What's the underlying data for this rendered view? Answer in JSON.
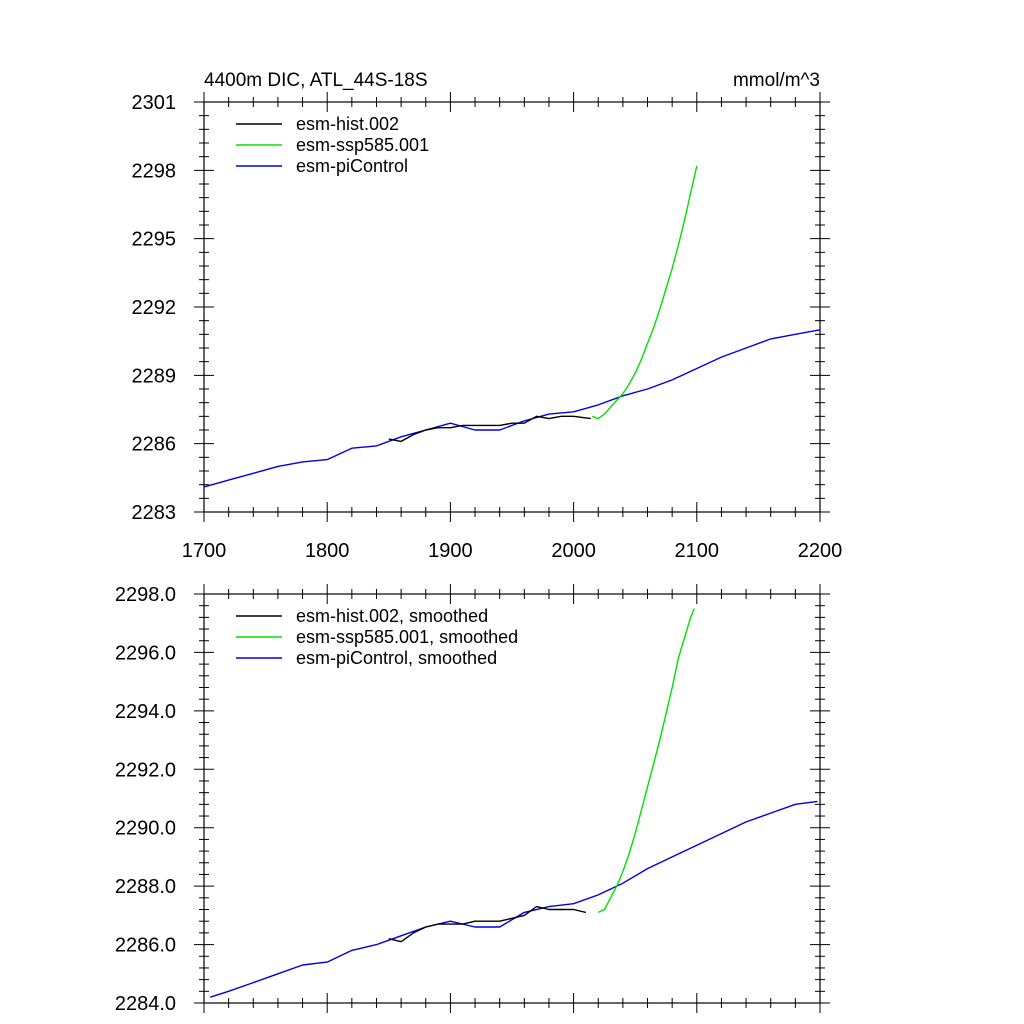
{
  "title_left": "4400m DIC, ATL_44S-18S",
  "title_right": "mmol/m^3",
  "colors": {
    "hist": "#000000",
    "ssp": "#00e000",
    "picontrol": "#0000e0"
  },
  "chart_data": [
    {
      "type": "line",
      "title": "4400m DIC, ATL_44S-18S",
      "units": "mmol/m^3",
      "xlim": [
        1700,
        2200
      ],
      "ylim": [
        2283,
        2301
      ],
      "x_ticks": [
        1700,
        1800,
        1900,
        2000,
        2100,
        2200
      ],
      "x_tick_labels": [
        "1700",
        "1800",
        "1900",
        "2000",
        "2100",
        "2200"
      ],
      "y_ticks": [
        2283,
        2286,
        2289,
        2292,
        2295,
        2298,
        2301
      ],
      "y_tick_labels": [
        "2283",
        "2286",
        "2289",
        "2292",
        "2295",
        "2298",
        "2301"
      ],
      "legend": [
        "esm-hist.002",
        "esm-ssp585.001",
        "esm-piControl"
      ],
      "series": [
        {
          "name": "esm-hist.002",
          "color": "#000000",
          "x": [
            1850,
            1860,
            1870,
            1880,
            1890,
            1900,
            1910,
            1920,
            1930,
            1940,
            1950,
            1960,
            1970,
            1980,
            1990,
            2000,
            2014
          ],
          "y": [
            2286.2,
            2286.1,
            2286.4,
            2286.6,
            2286.7,
            2286.7,
            2286.8,
            2286.8,
            2286.8,
            2286.8,
            2286.9,
            2286.9,
            2287.2,
            2287.1,
            2287.2,
            2287.2,
            2287.1
          ]
        },
        {
          "name": "esm-ssp585.001",
          "color": "#00e000",
          "x": [
            2015,
            2020,
            2025,
            2030,
            2035,
            2040,
            2045,
            2050,
            2055,
            2060,
            2065,
            2070,
            2075,
            2080,
            2085,
            2090,
            2095,
            2100
          ],
          "y": [
            2287.2,
            2287.1,
            2287.3,
            2287.6,
            2287.9,
            2288.2,
            2288.6,
            2289.1,
            2289.7,
            2290.4,
            2291.1,
            2291.9,
            2292.8,
            2293.7,
            2294.7,
            2295.8,
            2297.0,
            2298.2
          ]
        },
        {
          "name": "esm-piControl",
          "color": "#0000e0",
          "x": [
            1700,
            1720,
            1740,
            1760,
            1780,
            1800,
            1820,
            1840,
            1860,
            1880,
            1900,
            1920,
            1940,
            1960,
            1980,
            2000,
            2020,
            2040,
            2060,
            2080,
            2100,
            2120,
            2140,
            2160,
            2180,
            2200
          ],
          "y": [
            2284.1,
            2284.4,
            2284.7,
            2285.0,
            2285.2,
            2285.3,
            2285.8,
            2285.9,
            2286.3,
            2286.6,
            2286.9,
            2286.6,
            2286.6,
            2287.0,
            2287.3,
            2287.4,
            2287.7,
            2288.1,
            2288.4,
            2288.8,
            2289.3,
            2289.8,
            2290.2,
            2290.6,
            2290.8,
            2291.0
          ]
        }
      ]
    },
    {
      "type": "line",
      "xlim": [
        1700,
        2200
      ],
      "ylim": [
        2284.0,
        2298.0
      ],
      "x_ticks": [
        1700,
        1800,
        1900,
        2000,
        2100,
        2200
      ],
      "y_ticks": [
        2284.0,
        2286.0,
        2288.0,
        2290.0,
        2292.0,
        2294.0,
        2296.0,
        2298.0
      ],
      "y_tick_labels": [
        "2284.0",
        "2286.0",
        "2288.0",
        "2290.0",
        "2292.0",
        "2294.0",
        "2296.0",
        "2298.0"
      ],
      "legend": [
        "esm-hist.002, smoothed",
        "esm-ssp585.001, smoothed",
        "esm-piControl, smoothed"
      ],
      "series": [
        {
          "name": "esm-hist.002, smoothed",
          "color": "#000000",
          "x": [
            1850,
            1860,
            1870,
            1880,
            1890,
            1900,
            1910,
            1920,
            1930,
            1940,
            1950,
            1960,
            1970,
            1980,
            1990,
            2000,
            2010
          ],
          "y": [
            2286.2,
            2286.1,
            2286.4,
            2286.6,
            2286.7,
            2286.7,
            2286.7,
            2286.8,
            2286.8,
            2286.8,
            2286.9,
            2287.0,
            2287.3,
            2287.2,
            2287.2,
            2287.2,
            2287.1
          ]
        },
        {
          "name": "esm-ssp585.001, smoothed",
          "color": "#00e000",
          "x": [
            2020,
            2025,
            2030,
            2035,
            2040,
            2045,
            2050,
            2055,
            2060,
            2065,
            2070,
            2075,
            2080,
            2085,
            2090,
            2095,
            2098
          ],
          "y": [
            2287.1,
            2287.2,
            2287.6,
            2288.0,
            2288.5,
            2289.1,
            2289.8,
            2290.6,
            2291.4,
            2292.2,
            2293.0,
            2293.9,
            2294.8,
            2295.8,
            2296.5,
            2297.2,
            2297.5
          ]
        },
        {
          "name": "esm-piControl, smoothed",
          "color": "#0000e0",
          "x": [
            1705,
            1720,
            1740,
            1760,
            1780,
            1800,
            1820,
            1840,
            1860,
            1880,
            1900,
            1920,
            1940,
            1960,
            1980,
            2000,
            2020,
            2040,
            2060,
            2080,
            2100,
            2120,
            2140,
            2160,
            2180,
            2198
          ],
          "y": [
            2284.2,
            2284.4,
            2284.7,
            2285.0,
            2285.3,
            2285.4,
            2285.8,
            2286.0,
            2286.3,
            2286.6,
            2286.8,
            2286.6,
            2286.6,
            2287.1,
            2287.3,
            2287.4,
            2287.7,
            2288.1,
            2288.6,
            2289.0,
            2289.4,
            2289.8,
            2290.2,
            2290.5,
            2290.8,
            2290.9
          ]
        }
      ]
    }
  ]
}
